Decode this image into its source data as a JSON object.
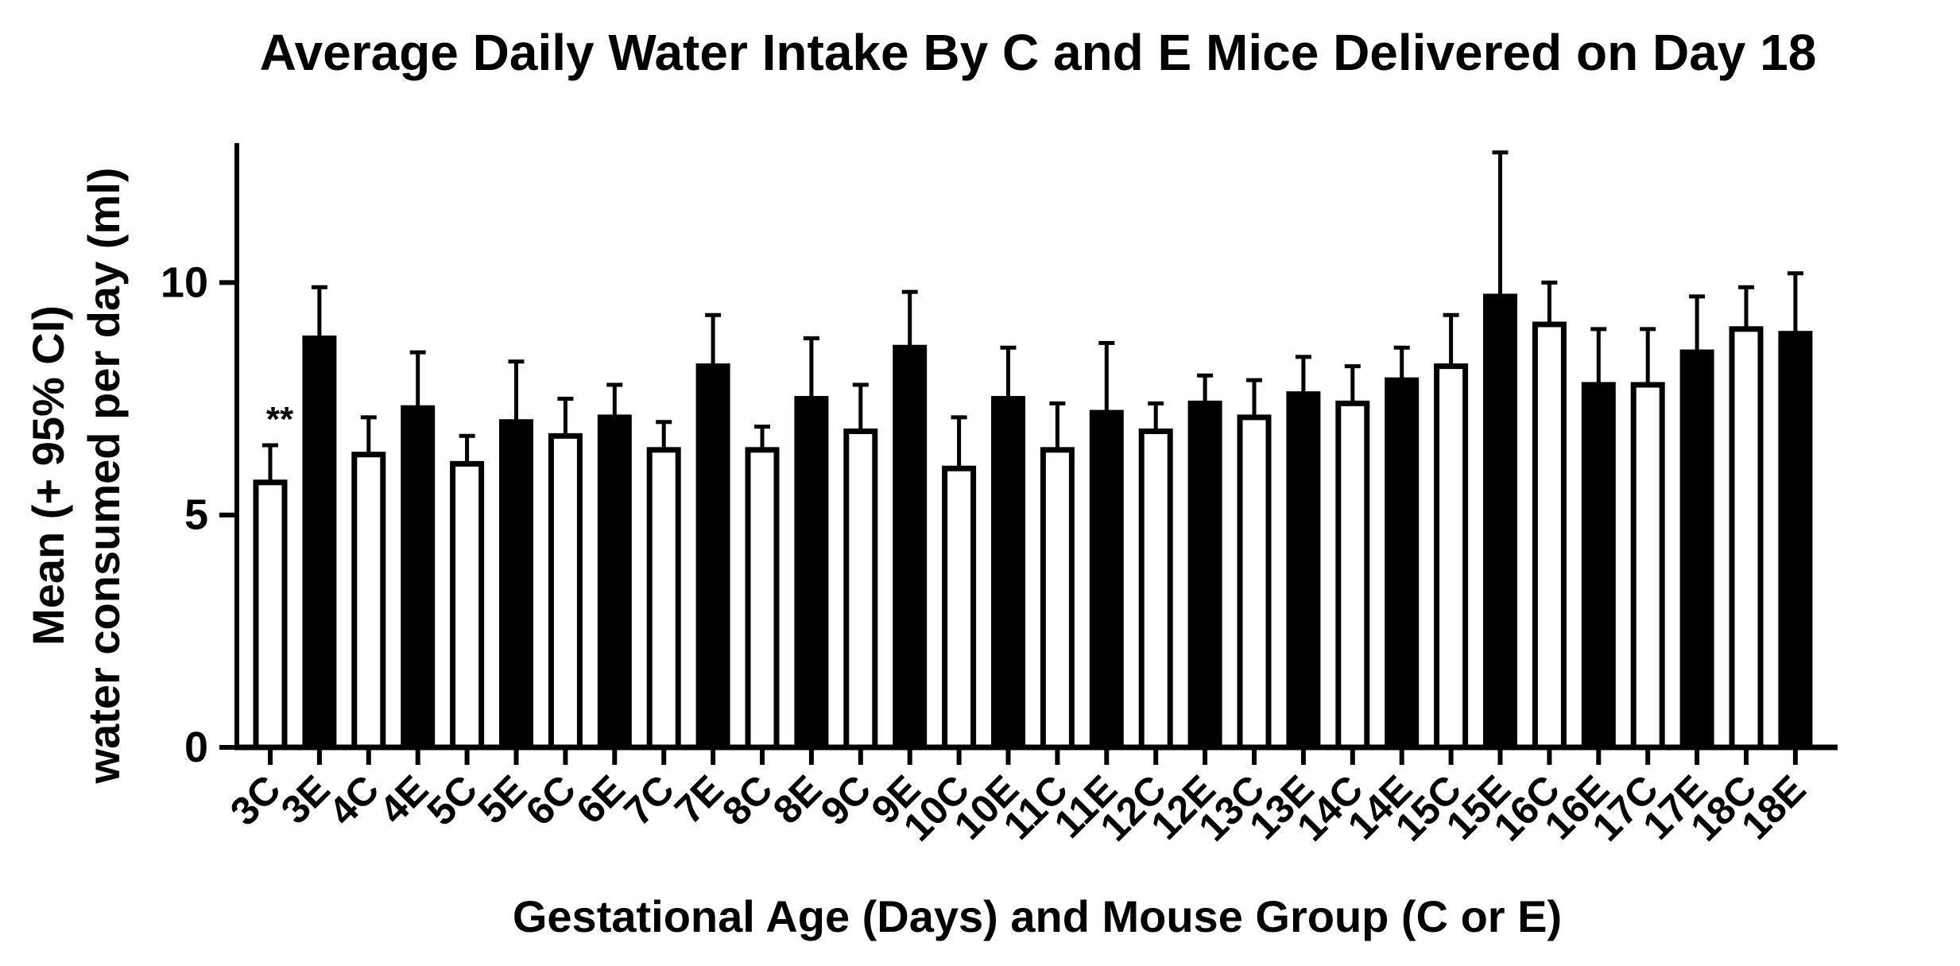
{
  "chart_data": {
    "type": "bar",
    "title": "Average Daily Water Intake By C and E Mice Delivered on Day 18",
    "xlabel": "Gestational Age (Days) and Mouse Group (C or E)",
    "ylabel_line1": "Mean (+ 95% CI)",
    "ylabel_line2": "water consumed per day (ml)",
    "ylim": [
      0,
      13
    ],
    "yticks": [
      0,
      5,
      10
    ],
    "ytick_labels": [
      "0",
      "5",
      "10"
    ],
    "grid": false,
    "annotation": {
      "text": "**",
      "category": "3C"
    },
    "categories": [
      "3C",
      "3E",
      "4C",
      "4E",
      "5C",
      "5E",
      "6C",
      "6E",
      "7C",
      "7E",
      "8C",
      "8E",
      "9C",
      "9E",
      "10C",
      "10E",
      "11C",
      "11E",
      "12C",
      "12E",
      "13C",
      "13E",
      "14C",
      "14E",
      "15C",
      "15E",
      "16C",
      "16E",
      "17C",
      "17E",
      "18C",
      "18E"
    ],
    "groups": [
      "C",
      "E",
      "C",
      "E",
      "C",
      "E",
      "C",
      "E",
      "C",
      "E",
      "C",
      "E",
      "C",
      "E",
      "C",
      "E",
      "C",
      "E",
      "C",
      "E",
      "C",
      "E",
      "C",
      "E",
      "C",
      "E",
      "C",
      "E",
      "C",
      "E",
      "C",
      "E"
    ],
    "values": [
      5.7,
      8.8,
      6.3,
      7.3,
      6.1,
      7.0,
      6.7,
      7.1,
      6.4,
      8.2,
      6.4,
      7.5,
      6.8,
      8.6,
      6.0,
      7.5,
      6.4,
      7.2,
      6.8,
      7.4,
      7.1,
      7.6,
      7.4,
      7.9,
      8.2,
      9.7,
      9.1,
      7.8,
      7.8,
      8.5,
      9.0,
      8.9
    ],
    "ci_upper": [
      6.5,
      9.9,
      7.1,
      8.5,
      6.7,
      8.3,
      7.5,
      7.8,
      7.0,
      9.3,
      6.9,
      8.8,
      7.8,
      9.8,
      7.1,
      8.6,
      7.4,
      8.7,
      7.4,
      8.0,
      7.9,
      8.4,
      8.2,
      8.6,
      9.3,
      12.8,
      10.0,
      9.0,
      9.0,
      9.7,
      9.9,
      10.2
    ],
    "colors": {
      "C": "#ffffff",
      "E": "#000000",
      "stroke": "#000000"
    }
  }
}
